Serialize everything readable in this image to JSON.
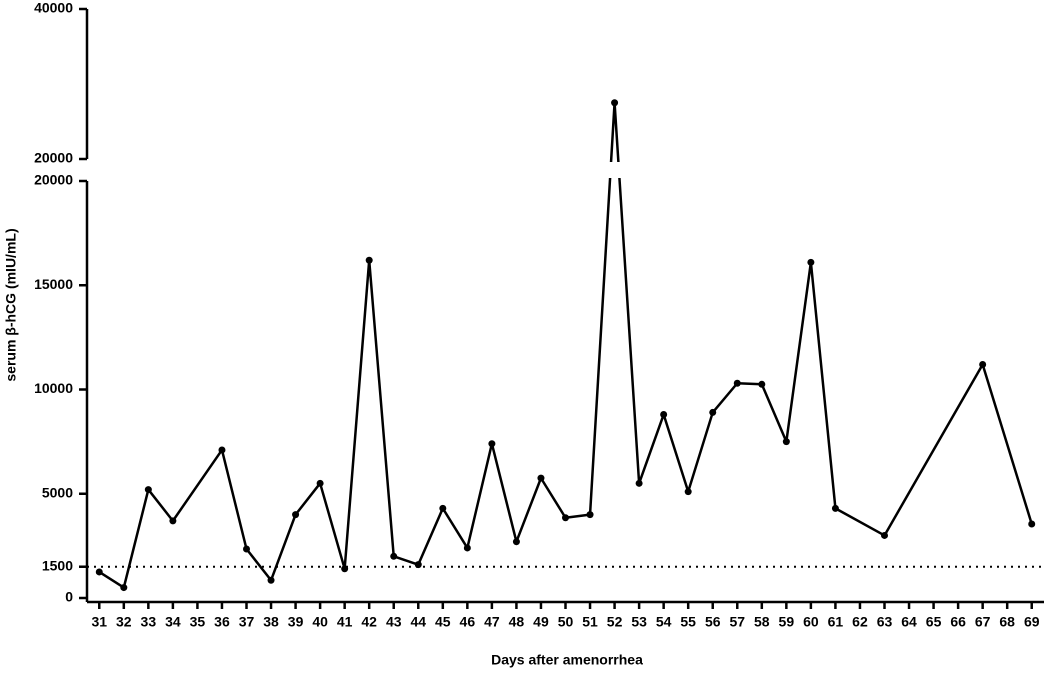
{
  "chart_data": {
    "type": "line",
    "x_label": "Days after amenorrhea",
    "y_label": "serum β-hCG (mIU/mL)",
    "x": [
      31,
      32,
      33,
      34,
      36,
      37,
      38,
      39,
      40,
      41,
      42,
      43,
      44,
      45,
      46,
      47,
      48,
      49,
      50,
      51,
      52,
      53,
      54,
      55,
      56,
      57,
      58,
      59,
      60,
      61,
      63,
      67,
      69
    ],
    "values": [
      1250,
      500,
      5200,
      3700,
      7100,
      2350,
      850,
      4000,
      5500,
      1400,
      16200,
      2000,
      1600,
      4300,
      2400,
      7400,
      2700,
      5750,
      3850,
      4000,
      27500,
      5500,
      8800,
      5100,
      8900,
      10300,
      10250,
      7500,
      16100,
      4300,
      3000,
      11200,
      3550
    ],
    "color": "#000000",
    "xlim": [
      30.5,
      69.5
    ],
    "xticks": [
      31,
      32,
      33,
      34,
      35,
      36,
      37,
      38,
      39,
      40,
      41,
      42,
      43,
      44,
      45,
      46,
      47,
      48,
      49,
      50,
      51,
      52,
      53,
      54,
      55,
      56,
      57,
      58,
      59,
      60,
      61,
      62,
      63,
      64,
      65,
      66,
      67,
      68,
      69
    ],
    "ylim": [
      0,
      20000
    ],
    "yticks": [
      0,
      1500,
      5000,
      10000,
      15000,
      20000
    ],
    "ylim_upper": [
      20000,
      40000
    ],
    "yticks_upper": [
      20000,
      40000
    ],
    "reference_line": 1500
  }
}
